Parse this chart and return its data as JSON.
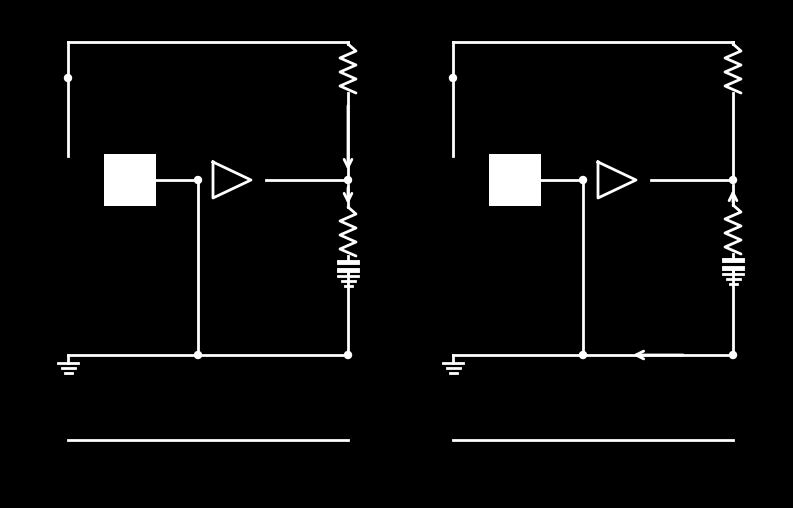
{
  "bg_color": "#000000",
  "line_color": "#ffffff",
  "lw": 2.0,
  "fig_width": 7.93,
  "fig_height": 5.08,
  "dpi": 100
}
